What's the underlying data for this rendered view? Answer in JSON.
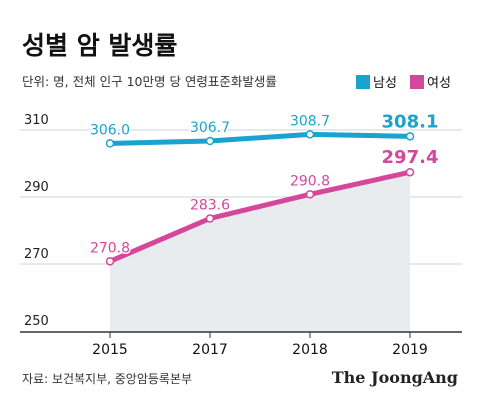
{
  "header": {
    "title": "성별 암 발생률",
    "subtitle": "단위: 명, 전체 인구 10만명 당 연령표준화발생률"
  },
  "legend": {
    "male_label": "남성",
    "female_label": "여성"
  },
  "footer": {
    "source": "자료: 보건복지부, 중앙암등록본부",
    "brand": "The JoongAng"
  },
  "colors": {
    "male": "#1aa3cf",
    "female": "#d4479a",
    "area": "#e8ecef",
    "grid": "#cfd4d8",
    "axis": "#333333"
  },
  "chart_data": {
    "type": "line",
    "title": "성별 암 발생률",
    "subtitle": "단위: 명, 전체 인구 10만명 당 연령표준화발생률",
    "xlabel": "",
    "ylabel": "",
    "categories": [
      "2015",
      "2017",
      "2018",
      "2019"
    ],
    "ylim": [
      250,
      315
    ],
    "yticks": [
      "250",
      "270",
      "290",
      "310"
    ],
    "grid": true,
    "legend_position": "top-right",
    "series": [
      {
        "name": "남성",
        "values": [
          306.0,
          306.7,
          308.7,
          308.1
        ],
        "labels": [
          "306.0",
          "306.7",
          "308.7",
          "308.1"
        ],
        "color": "#1aa3cf"
      },
      {
        "name": "여성",
        "values": [
          270.8,
          283.6,
          290.8,
          297.4
        ],
        "labels": [
          "270.8",
          "283.6",
          "290.8",
          "297.4"
        ],
        "color": "#d4479a"
      }
    ]
  }
}
